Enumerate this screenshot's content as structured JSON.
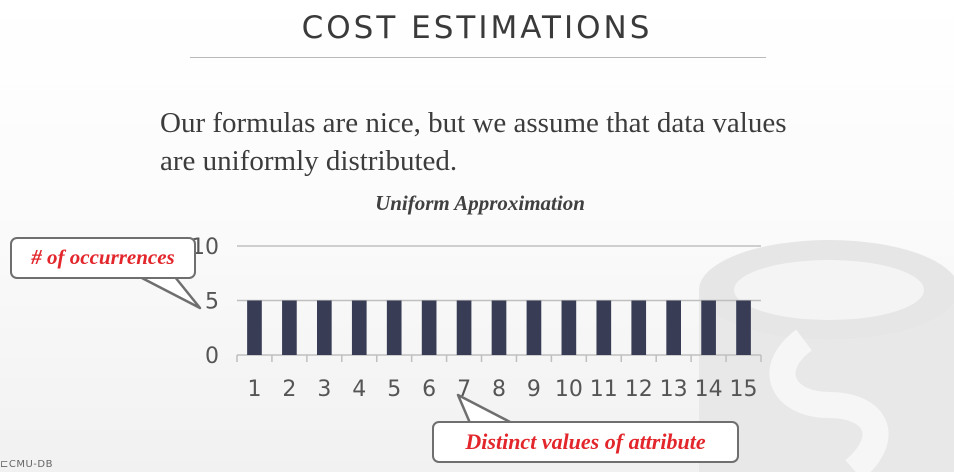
{
  "slide": {
    "title": "COST ESTIMATIONS",
    "body": "Our formulas are nice, but we assume that data values are uniformly distributed.",
    "footer_logo": "⊏CMU-DB"
  },
  "callouts": {
    "occurrences": "# of occurrences",
    "distinct_values": "Distinct values of attribute"
  },
  "colors": {
    "bar": "#383d55",
    "callout_text": "#e2262b",
    "axis": "#bfbfbf"
  },
  "chart_data": {
    "type": "bar",
    "title": "Uniform Approximation",
    "categories": [
      "1",
      "2",
      "3",
      "4",
      "5",
      "6",
      "7",
      "8",
      "9",
      "10",
      "11",
      "12",
      "13",
      "14",
      "15"
    ],
    "values": [
      5,
      5,
      5,
      5,
      5,
      5,
      5,
      5,
      5,
      5,
      5,
      5,
      5,
      5,
      5
    ],
    "yticks": [
      "0",
      "5",
      "10"
    ],
    "ylim": [
      0,
      10
    ],
    "xlabel": "",
    "ylabel": "",
    "grid": true,
    "legend": "none"
  }
}
